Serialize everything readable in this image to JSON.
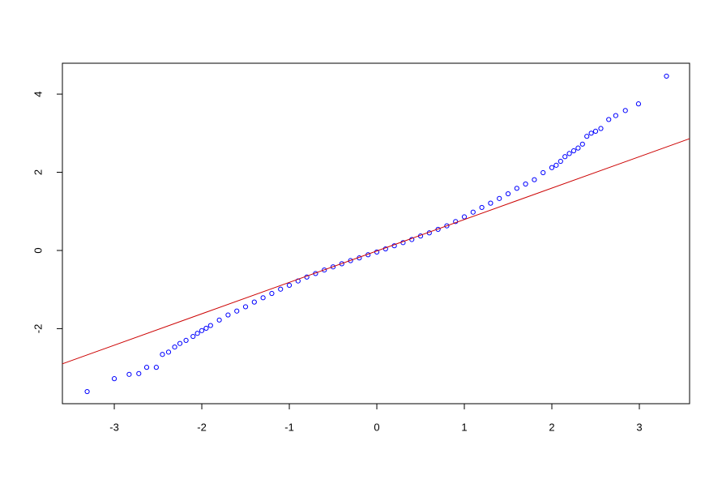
{
  "chart_data": {
    "type": "scatter",
    "x": [
      -3.31,
      -3.0,
      -2.83,
      -2.72,
      -2.63,
      -2.52,
      -2.45,
      -2.38,
      -2.31,
      -2.25,
      -2.18,
      -2.1,
      -2.05,
      -2.0,
      -1.95,
      -1.9,
      -1.8,
      -1.7,
      -1.6,
      -1.5,
      -1.4,
      -1.3,
      -1.2,
      -1.1,
      -1.0,
      -0.9,
      -0.8,
      -0.7,
      -0.6,
      -0.5,
      -0.4,
      -0.3,
      -0.2,
      -0.1,
      0,
      0.1,
      0.2,
      0.3,
      0.4,
      0.5,
      0.6,
      0.7,
      0.8,
      0.9,
      1.0,
      1.1,
      1.2,
      1.3,
      1.4,
      1.5,
      1.6,
      1.7,
      1.8,
      1.9,
      2.0,
      2.05,
      2.1,
      2.15,
      2.2,
      2.25,
      2.3,
      2.35,
      2.4,
      2.45,
      2.5,
      2.56,
      2.65,
      2.73,
      2.84,
      2.99,
      3.31
    ],
    "y": [
      -3.61,
      -3.28,
      -3.17,
      -3.15,
      -2.99,
      -2.99,
      -2.66,
      -2.6,
      -2.47,
      -2.38,
      -2.3,
      -2.2,
      -2.12,
      -2.05,
      -1.99,
      -1.92,
      -1.78,
      -1.65,
      -1.55,
      -1.44,
      -1.32,
      -1.21,
      -1.1,
      -0.99,
      -0.89,
      -0.78,
      -0.68,
      -0.59,
      -0.5,
      -0.42,
      -0.34,
      -0.26,
      -0.19,
      -0.11,
      -0.04,
      0.04,
      0.12,
      0.2,
      0.28,
      0.37,
      0.45,
      0.54,
      0.63,
      0.74,
      0.86,
      0.98,
      1.1,
      1.21,
      1.33,
      1.45,
      1.59,
      1.7,
      1.81,
      1.99,
      2.12,
      2.18,
      2.28,
      2.4,
      2.48,
      2.55,
      2.62,
      2.72,
      2.92,
      3.0,
      3.05,
      3.12,
      3.35,
      3.45,
      3.58,
      3.75,
      4.46
    ],
    "color": "#0000ff",
    "reference_line": {
      "x": [
        -3.593,
        3.574
      ],
      "y": [
        -2.9,
        2.86
      ],
      "color": "#cc0000"
    },
    "xlim": [
      -3.593,
      3.574
    ],
    "ylim": [
      -3.92,
      4.79
    ],
    "xticks": [
      -3,
      -2,
      -1,
      0,
      1,
      2,
      3
    ],
    "yticks": [
      -2,
      0,
      2,
      4
    ]
  }
}
